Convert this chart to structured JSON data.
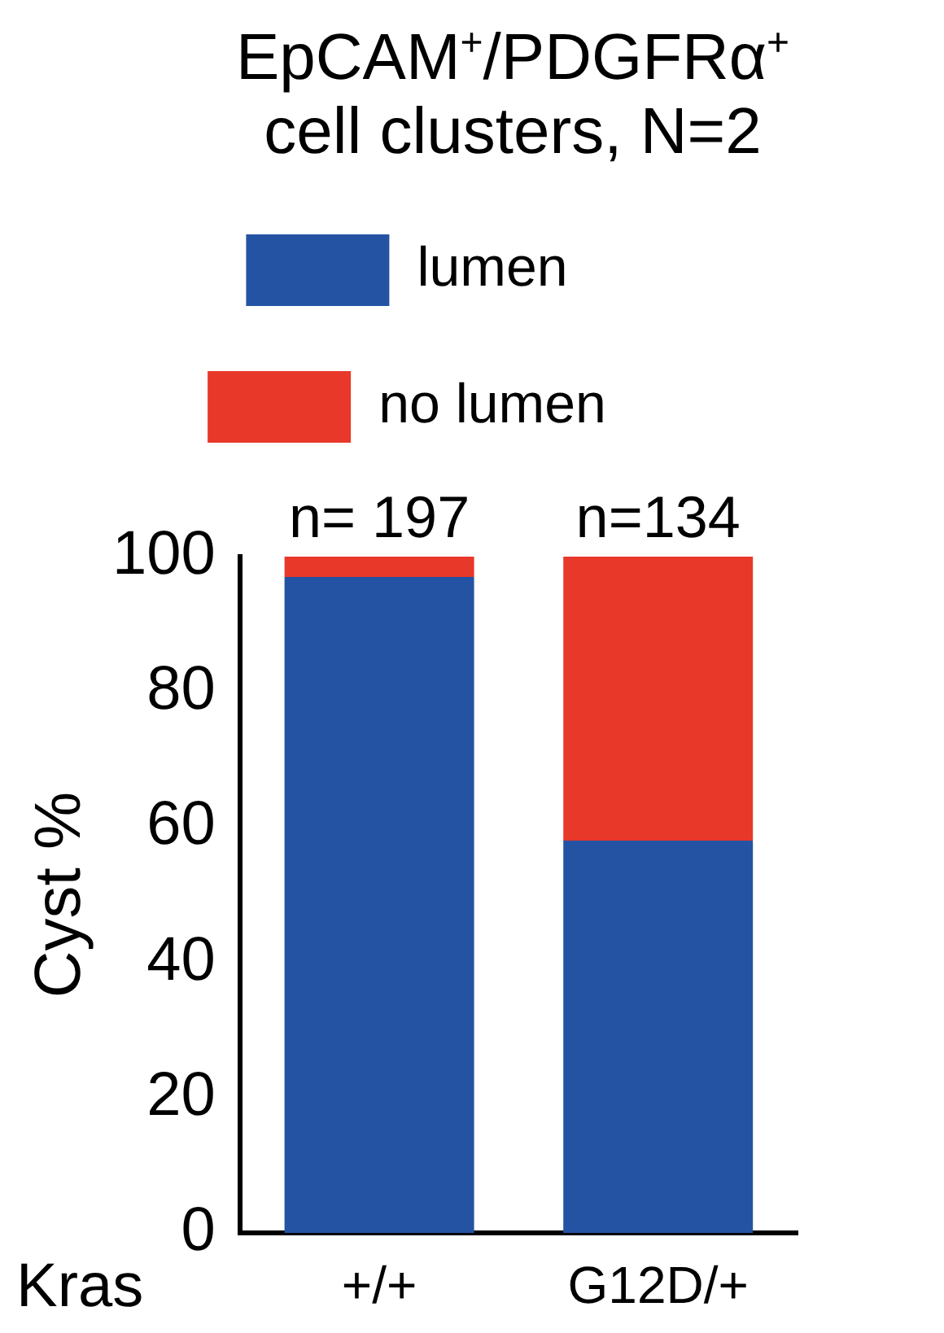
{
  "chart_data": {
    "type": "bar",
    "title": "EpCAM$^{+}$/PDGFRα$^{+}$ cell clusters, N=2",
    "categories": [
      "+/+",
      "G12D/+"
    ],
    "series": [
      {
        "name": "lumen",
        "color": "#2453a3",
        "values": [
          97,
          58
        ]
      },
      {
        "name": "no lumen",
        "color": "#e8382a",
        "values": [
          3,
          42
        ]
      }
    ],
    "stacked": true,
    "ylim": [
      0,
      100
    ],
    "yticks": [
      0,
      20,
      40,
      60,
      80,
      100
    ],
    "ylabel": "Cyst %",
    "xlabel": "Kras",
    "grid": false,
    "legend": "top",
    "annotations": [
      {
        "text": "n= 197",
        "x": "+/+",
        "y": 100
      },
      {
        "text": "n=134",
        "x": "G12D/+",
        "y": 100
      }
    ]
  }
}
